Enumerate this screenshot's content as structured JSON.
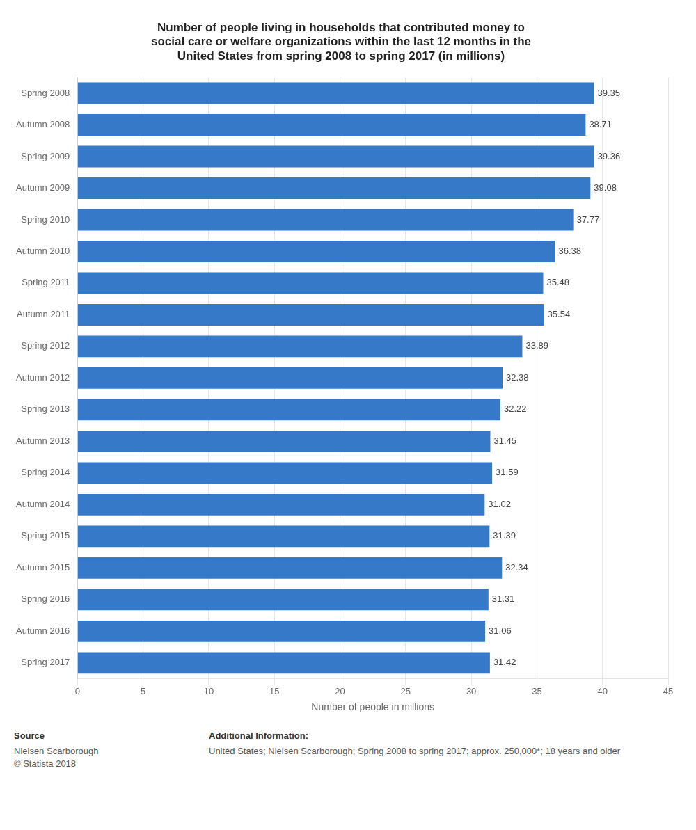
{
  "chart_data": {
    "type": "bar",
    "orientation": "horizontal",
    "title": "Number of people living in households that contributed money to\nsocial care or welfare organizations within the last 12 months in the\nUnited States from spring 2008 to spring 2017 (in millions)",
    "categories": [
      "Spring 2008",
      "Autumn 2008",
      "Spring 2009",
      "Autumn 2009",
      "Spring 2010",
      "Autumn 2010",
      "Spring 2011",
      "Autumn 2011",
      "Spring 2012",
      "Autumn 2012",
      "Spring 2013",
      "Autumn 2013",
      "Spring 2014",
      "Autumn 2014",
      "Spring 2015",
      "Autumn 2015",
      "Spring 2016",
      "Autumn 2016",
      "Spring 2017"
    ],
    "values": [
      39.35,
      38.71,
      39.36,
      39.08,
      37.77,
      36.38,
      35.48,
      35.54,
      33.89,
      32.38,
      32.22,
      31.45,
      31.59,
      31.02,
      31.39,
      32.34,
      31.31,
      31.06,
      31.42
    ],
    "color": "#3579c8",
    "xlabel": "Number of people in millions",
    "xlim": [
      0,
      45
    ],
    "xticks": [
      0,
      5,
      10,
      15,
      20,
      25,
      30,
      35,
      40,
      45
    ],
    "grid": true,
    "data_labels": true,
    "annotations": [
      {
        "title": "Source",
        "text": "Nielsen Scarborough\n© Statista 2018"
      },
      {
        "title": "Additional Information:",
        "text": "United States; Nielsen Scarborough; Spring 2008 to spring 2017; approx. 250,000*; 18 years and older"
      }
    ]
  }
}
